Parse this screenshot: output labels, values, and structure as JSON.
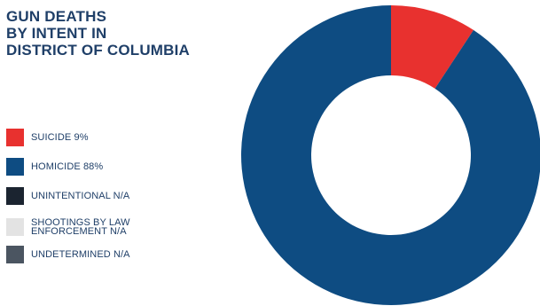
{
  "title_lines": [
    "GUN DEATHS",
    "BY INTENT IN",
    "DISTRICT OF COLUMBIA"
  ],
  "legend": [
    {
      "label": "SUICIDE 9%",
      "color": "#e8312f"
    },
    {
      "label": "HOMICIDE 88%",
      "color": "#0e4c82"
    },
    {
      "label": "UNINTENTIONAL N/A",
      "color": "#1b2430"
    },
    {
      "label": "SHOOTINGS BY LAW\nENFORCEMENT N/A",
      "color": "#e3e3e3"
    },
    {
      "label": "UNDETERMINED N/A",
      "color": "#4b5561"
    }
  ],
  "chart_data": {
    "type": "pie",
    "title": "GUN DEATHS BY INTENT IN DISTRICT OF COLUMBIA",
    "categories": [
      "SUICIDE",
      "HOMICIDE",
      "UNINTENTIONAL",
      "SHOOTINGS BY LAW ENFORCEMENT",
      "UNDETERMINED"
    ],
    "values": [
      9,
      88,
      null,
      null,
      null
    ],
    "value_labels": [
      "9%",
      "88%",
      "N/A",
      "N/A",
      "N/A"
    ],
    "unit": "%",
    "colors": [
      "#e8312f",
      "#0e4c82",
      "#1b2430",
      "#e3e3e3",
      "#4b5561"
    ],
    "donut": true,
    "start_angle": "12 o'clock",
    "direction": "clockwise",
    "legend_position": "left"
  }
}
